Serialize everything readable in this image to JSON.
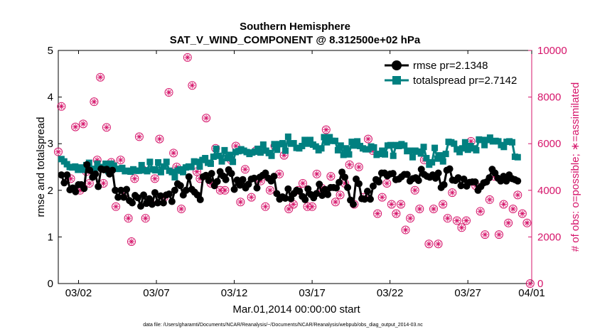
{
  "chart_data": {
    "type": "line",
    "title": "Southern Hemisphere",
    "subtitle": "SAT_V_WIND_COMPONENT @ 8.312500e+02 hPa",
    "xlabel": "Mar.01,2014 00:00:00 start",
    "ylabel": "rmse and totalspread",
    "ylabel_right": "# of obs: o=possible; ∗=assimilated",
    "footnote": "data file: /Users/gharamti/Documents/NCAR/Reanalysis/~/Documents/NCAR/Reanalysis/webpub/obs_diag_output_2014-03.nc",
    "xlim": [
      0.7,
      31.1
    ],
    "ylim": [
      0,
      5
    ],
    "ylim_right": [
      0,
      10000
    ],
    "x_ticks": [
      {
        "x": 2,
        "label": "03/02"
      },
      {
        "x": 7,
        "label": "03/07"
      },
      {
        "x": 12,
        "label": "03/12"
      },
      {
        "x": 17,
        "label": "03/17"
      },
      {
        "x": 22,
        "label": "03/22"
      },
      {
        "x": 27,
        "label": "03/27"
      },
      {
        "x": 32,
        "label": "04/01"
      }
    ],
    "y_ticks": [
      "0",
      "1",
      "2",
      "3",
      "4",
      "5"
    ],
    "y_ticks_right": [
      "0",
      "2000",
      "4000",
      "6000",
      "8000",
      "10000"
    ],
    "legend_position": "top-right",
    "colors": {
      "rmse": "#000000",
      "totalspread": "#008080",
      "obs": "#d6156b"
    },
    "series": [
      {
        "name": "rmse pr=2.1348",
        "marker": "circle",
        "values": [
          2.33,
          2.16,
          2.33,
          2.01,
          2.05,
          1.97,
          2.12,
          2.12,
          2.04,
          2.55,
          2.43,
          2.28,
          2.35,
          2.08,
          2.46,
          2.44,
          2.45,
          2.35,
          2.43,
          2.0,
          1.85,
          2.0,
          1.85,
          2.02,
          1.78,
          1.73,
          1.89,
          1.84,
          1.66,
          1.9,
          1.72,
          1.82,
          1.7,
          1.95,
          1.73,
          1.88,
          1.73,
          1.9,
          1.92,
          1.76,
          2.0,
          2.14,
          2.1,
          1.9,
          2.0,
          2.29,
          2.02,
          1.96,
          1.9,
          1.8,
          2.29,
          2.32,
          2.21,
          2.36,
          2.1,
          2.19,
          2.4,
          2.31,
          2.23,
          2.44,
          2.36,
          2.02,
          2.22,
          2.11,
          2.23,
          2.05,
          2.13,
          2.24,
          2.26,
          2.05,
          2.28,
          2.32,
          2.37,
          2.26,
          2.2,
          2.3,
          1.93,
          1.81,
          1.86,
          1.83,
          2.03,
          1.82,
          1.93,
          2.0,
          1.98,
          1.87,
          1.8,
          2.03,
          1.91,
          1.84,
          1.93,
          2.13,
          1.89,
          2.02,
          1.91,
          2.06,
          2.06,
          2.05,
          2.17,
          2.39,
          2.28,
          2.06,
          1.79,
          1.7,
          2.24,
          2.14,
          1.82,
          1.81,
          1.98,
          1.81,
          2.09,
          2.23,
          2.18,
          2.37,
          2.37,
          2.31,
          2.35,
          2.36,
          2.23,
          2.24,
          2.29,
          2.34,
          2.34,
          2.2,
          2.25,
          2.27,
          2.21,
          2.45,
          2.34,
          2.3,
          2.28,
          2.33,
          2.26,
          2.37,
          2.06,
          2.12,
          2.43,
          2.46,
          2.22,
          2.21,
          2.27,
          2.1,
          2.24,
          2.09,
          2.17,
          2.18,
          2.18,
          2.0,
          2.08,
          2.16,
          2.18,
          2.27,
          2.45,
          2.37,
          2.26,
          2.2,
          2.3,
          2.2,
          2.33,
          2.25,
          2.23,
          2.2
        ]
      },
      {
        "name": "totalspread pr=2.7142",
        "marker": "square",
        "values": [
          2.67,
          2.62,
          2.56,
          2.5,
          2.49,
          2.51,
          2.44,
          2.49,
          2.44,
          2.54,
          2.59,
          2.43,
          2.46,
          2.57,
          2.5,
          2.5,
          2.57,
          2.41,
          2.57,
          2.53,
          2.46,
          2.46,
          2.48,
          2.41,
          2.42,
          2.4,
          2.45,
          2.42,
          2.42,
          2.54,
          2.43,
          2.41,
          2.61,
          2.45,
          2.43,
          2.6,
          2.39,
          2.51,
          2.61,
          2.42,
          2.39,
          2.28,
          2.42,
          2.45,
          2.39,
          2.49,
          2.51,
          2.5,
          2.62,
          2.61,
          2.51,
          2.65,
          2.69,
          2.59,
          2.57,
          2.72,
          2.89,
          2.74,
          2.62,
          2.86,
          2.69,
          2.76,
          2.61,
          2.82,
          2.84,
          2.88,
          2.85,
          2.82,
          2.78,
          2.81,
          2.83,
          2.89,
          2.81,
          2.98,
          2.85,
          2.8,
          2.74,
          2.99,
          2.87,
          2.99,
          3.01,
          2.85,
          3.15,
          3.0,
          3.01,
          2.91,
          2.9,
          2.95,
          3.08,
          3.0,
          3.08,
          2.98,
          2.94,
          2.86,
          2.9,
          3.14,
          3.03,
          3.14,
          3.06,
          3.06,
          2.86,
          2.96,
          2.76,
          2.9,
          2.77,
          3.04,
          2.96,
          3.05,
          2.95,
          2.9,
          2.88,
          2.88,
          2.94,
          2.92,
          2.76,
          2.78,
          2.85,
          2.77,
          2.96,
          2.97,
          2.74,
          2.97,
          2.95,
          2.99,
          2.96,
          2.84,
          2.85,
          2.71,
          2.85,
          2.83,
          2.79,
          2.93,
          2.69,
          2.55,
          2.6,
          2.91,
          2.68,
          2.75,
          2.62,
          2.78,
          3.04,
          3.03,
          3.0,
          2.88,
          2.82,
          2.9,
          3.03,
          2.87,
          2.95,
          2.9,
          2.86,
          3.09,
          3.08,
          2.97,
          3.08,
          3.13,
          3.05,
          3.06,
          3.05,
          2.97,
          2.93,
          3.04,
          3.05,
          3.03,
          2.72,
          2.71
        ]
      },
      {
        "name": "obs possible",
        "axis": "right",
        "marker": "circle-open",
        "x": [
          0.7,
          0.9,
          1.5,
          1.8,
          2.1,
          2.3,
          2.5,
          2.7,
          3.0,
          3.2,
          3.4,
          3.6,
          3.8,
          4.1,
          4.4,
          4.7,
          4.9,
          5.2,
          5.4,
          5.6,
          5.9,
          6.1,
          6.3,
          6.6,
          6.9,
          7.2,
          7.5,
          7.8,
          8.1,
          8.3,
          8.6,
          9.0,
          9.3,
          9.6,
          9.8,
          10.2,
          10.5,
          10.8,
          11.1,
          11.4,
          11.8,
          12.1,
          12.4,
          12.7,
          13.1,
          13.4,
          13.7,
          14.0,
          14.3,
          14.6,
          14.9,
          15.2,
          15.5,
          15.8,
          16.1,
          16.4,
          16.7,
          17.0,
          17.3,
          17.6,
          17.9,
          18.2,
          18.5,
          18.8,
          19.1,
          19.4,
          19.7,
          20.0,
          20.3,
          20.6,
          20.9,
          21.2,
          21.5,
          21.8,
          22.1,
          22.4,
          22.7,
          23.0,
          23.3,
          23.6,
          23.9,
          24.2,
          24.5,
          24.8,
          25.1,
          25.4,
          25.7,
          26.0,
          26.3,
          26.6,
          26.9,
          27.2,
          27.5,
          27.8,
          28.1,
          28.4,
          28.7,
          29.0,
          29.3,
          29.6,
          29.9,
          30.2,
          30.5,
          30.8,
          31.0
        ],
        "values": [
          5650,
          7600,
          4500,
          6720,
          4000,
          6850,
          4800,
          4300,
          7800,
          5300,
          8850,
          4300,
          6700,
          5200,
          3300,
          5300,
          3800,
          2800,
          1800,
          4500,
          6300,
          4900,
          2800,
          3500,
          4500,
          6200,
          3700,
          8200,
          5600,
          5000,
          3200,
          9700,
          8500,
          4800,
          4500,
          7100,
          4300,
          5800,
          4000,
          4000,
          5300,
          5900,
          3500,
          4900,
          3700,
          5700,
          4400,
          3300,
          4000,
          5900,
          4700,
          5500,
          3200,
          3400,
          4000,
          4300,
          3300,
          3300,
          4700,
          4100,
          6600,
          4600,
          3500,
          3800,
          4300,
          5100,
          3400,
          5000,
          3700,
          6200,
          5700,
          3000,
          3700,
          4300,
          3400,
          3000,
          3400,
          2300,
          2800,
          4000,
          3200,
          5300,
          1700,
          3200,
          1700,
          3400,
          2800,
          3900,
          2700,
          2400,
          2700,
          6100,
          4200,
          3100,
          2100,
          3600,
          4600,
          2100,
          3400,
          2600,
          3200,
          3800,
          3000,
          2600,
          0
        ]
      },
      {
        "name": "obs assimilated",
        "axis": "right",
        "marker": "asterisk",
        "x": [
          0.7,
          0.9,
          1.5,
          1.8,
          2.1,
          2.3,
          2.5,
          2.7,
          3.0,
          3.2,
          3.4,
          3.6,
          3.8,
          4.1,
          4.4,
          4.7,
          4.9,
          5.2,
          5.4,
          5.6,
          5.9,
          6.1,
          6.3,
          6.6,
          6.9,
          7.2,
          7.5,
          7.8,
          8.1,
          8.3,
          8.6,
          9.0,
          9.3,
          9.6,
          9.8,
          10.2,
          10.5,
          10.8,
          11.1,
          11.4,
          11.8,
          12.1,
          12.4,
          12.7,
          13.1,
          13.4,
          13.7,
          14.0,
          14.3,
          14.6,
          14.9,
          15.2,
          15.5,
          15.8,
          16.1,
          16.4,
          16.7,
          17.0,
          17.3,
          17.6,
          17.9,
          18.2,
          18.5,
          18.8,
          19.1,
          19.4,
          19.7,
          20.0,
          20.3,
          20.6,
          20.9,
          21.2,
          21.5,
          21.8,
          22.1,
          22.4,
          22.7,
          23.0,
          23.3,
          23.6,
          23.9,
          24.2,
          24.5,
          24.8,
          25.1,
          25.4,
          25.7,
          26.0,
          26.3,
          26.6,
          26.9,
          27.2,
          27.5,
          27.8,
          28.1,
          28.4,
          28.7,
          29.0,
          29.3,
          29.6,
          29.9,
          30.2,
          30.5,
          30.8,
          31.0
        ],
        "values": [
          5650,
          7600,
          4500,
          6720,
          4000,
          6850,
          4800,
          4300,
          7800,
          5300,
          8850,
          4300,
          6700,
          5200,
          3300,
          5300,
          3800,
          2800,
          1800,
          4500,
          6300,
          4900,
          2800,
          3500,
          4500,
          6200,
          3700,
          8200,
          5600,
          5000,
          3200,
          9700,
          8500,
          4800,
          4500,
          7100,
          4300,
          5800,
          4000,
          4000,
          5300,
          5900,
          3500,
          4900,
          3700,
          5700,
          4400,
          3300,
          4000,
          5900,
          4700,
          5500,
          3200,
          3400,
          4000,
          4300,
          3300,
          3300,
          4700,
          4100,
          6600,
          4600,
          3500,
          3800,
          4300,
          5100,
          3400,
          5000,
          3700,
          6200,
          5700,
          3000,
          3700,
          4300,
          3400,
          3000,
          3400,
          2300,
          2800,
          4000,
          3200,
          5300,
          1700,
          3200,
          1700,
          3400,
          2800,
          3900,
          2700,
          2400,
          2700,
          6100,
          4200,
          3100,
          2100,
          3600,
          4600,
          2100,
          3400,
          2600,
          3200,
          3800,
          3000,
          2600,
          0
        ]
      }
    ]
  }
}
